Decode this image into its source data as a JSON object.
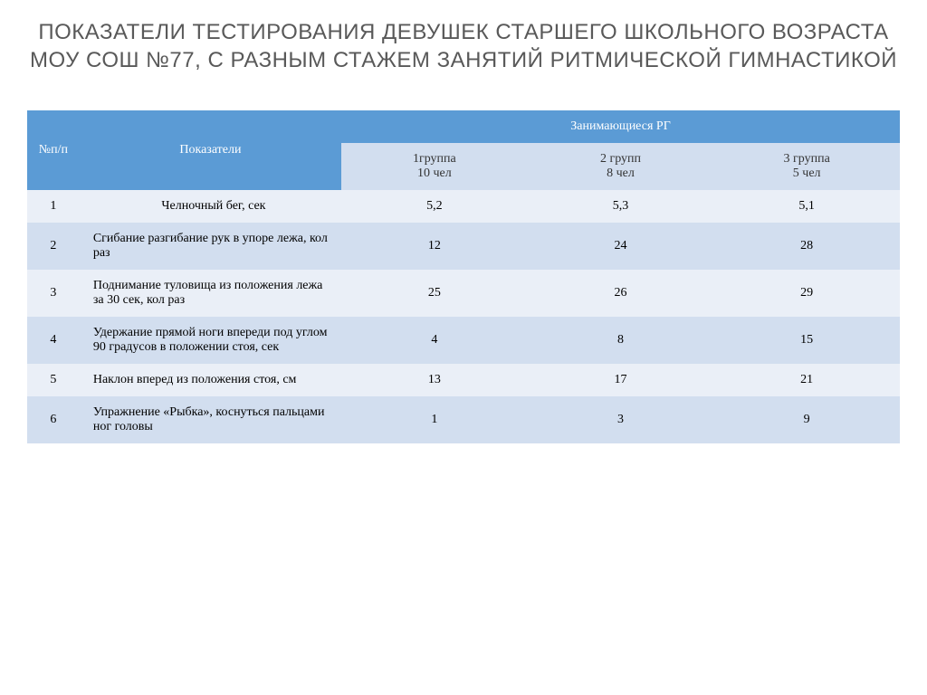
{
  "title": "ПОКАЗАТЕЛИ ТЕСТИРОВАНИЯ  ДЕВУШЕК СТАРШЕГО ШКОЛЬНОГО ВОЗРАСТА МОУ СОШ №77,  С РАЗНЫМ СТАЖЕМ ЗАНЯТИЙ  РИТМИЧЕСКОЙ ГИМНАСТИКОЙ",
  "table": {
    "type": "table",
    "colors": {
      "header_bg": "#5b9bd5",
      "header_text": "#ffffff",
      "subheader_bg": "#d2deef",
      "band1_bg": "#eaeff7",
      "band2_bg": "#d2deef",
      "text": "#333333",
      "title_text": "#595959"
    },
    "header": {
      "num": "№п/п",
      "indicator": "Показатели",
      "group_span": "Занимающиеся РГ",
      "group1_line1": "1группа",
      "group1_line2": "10 чел",
      "group2_line1": "2 групп",
      "group2_line2": "8 чел",
      "group3_line1": "3 группа",
      "group3_line2": "5 чел"
    },
    "rows": [
      {
        "num": "1",
        "indicator": "Челночный бег, сек",
        "g1": "5,2",
        "g2": "5,3",
        "g3": "5,1",
        "center": true
      },
      {
        "num": "2",
        "indicator": "Сгибание разгибание рук в упоре лежа, кол раз",
        "g1": "12",
        "g2": "24",
        "g3": "28"
      },
      {
        "num": "3",
        "indicator": "Поднимание туловища из положения лежа за 30 сек, кол раз",
        "g1": "25",
        "g2": "26",
        "g3": "29"
      },
      {
        "num": "4",
        "indicator": "Удержание прямой  ноги впереди под углом 90 градусов в положении стоя, сек",
        "g1": "4",
        "g2": "8",
        "g3": "15"
      },
      {
        "num": "5",
        "indicator": "Наклон вперед из положения стоя, см",
        "g1": "13",
        "g2": "17",
        "g3": "21"
      },
      {
        "num": "6",
        "indicator": "Упражнение «Рыбка», коснуться пальцами ног головы",
        "g1": "1",
        "g2": "3",
        "g3": "9"
      }
    ]
  }
}
